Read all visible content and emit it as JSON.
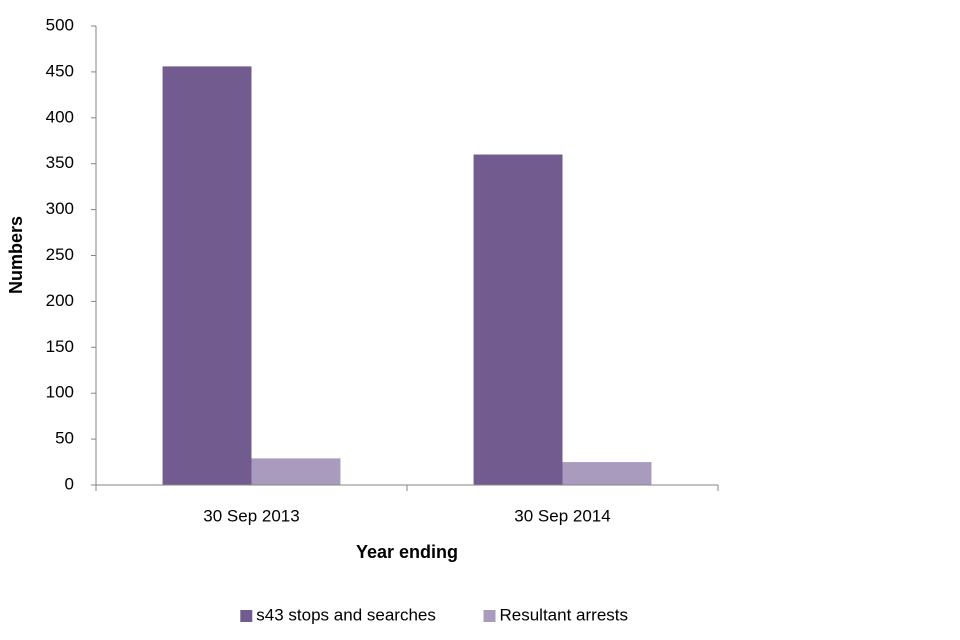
{
  "chart_data": {
    "type": "bar",
    "x_label": "Year ending",
    "y_label": "Numbers",
    "categories": [
      "30 Sep 2013",
      "30 Sep 2014"
    ],
    "series": [
      {
        "name": "s43 stops and searches",
        "color": "#725b8f",
        "values": [
          456,
          360
        ]
      },
      {
        "name": "Resultant arrests",
        "color": "#a99bbd",
        "values": [
          29,
          25
        ]
      }
    ],
    "ylim": [
      0,
      500
    ],
    "yticks": [
      0,
      50,
      100,
      150,
      200,
      250,
      300,
      350,
      400,
      450,
      500
    ],
    "grid": false,
    "legend": "bottom"
  }
}
